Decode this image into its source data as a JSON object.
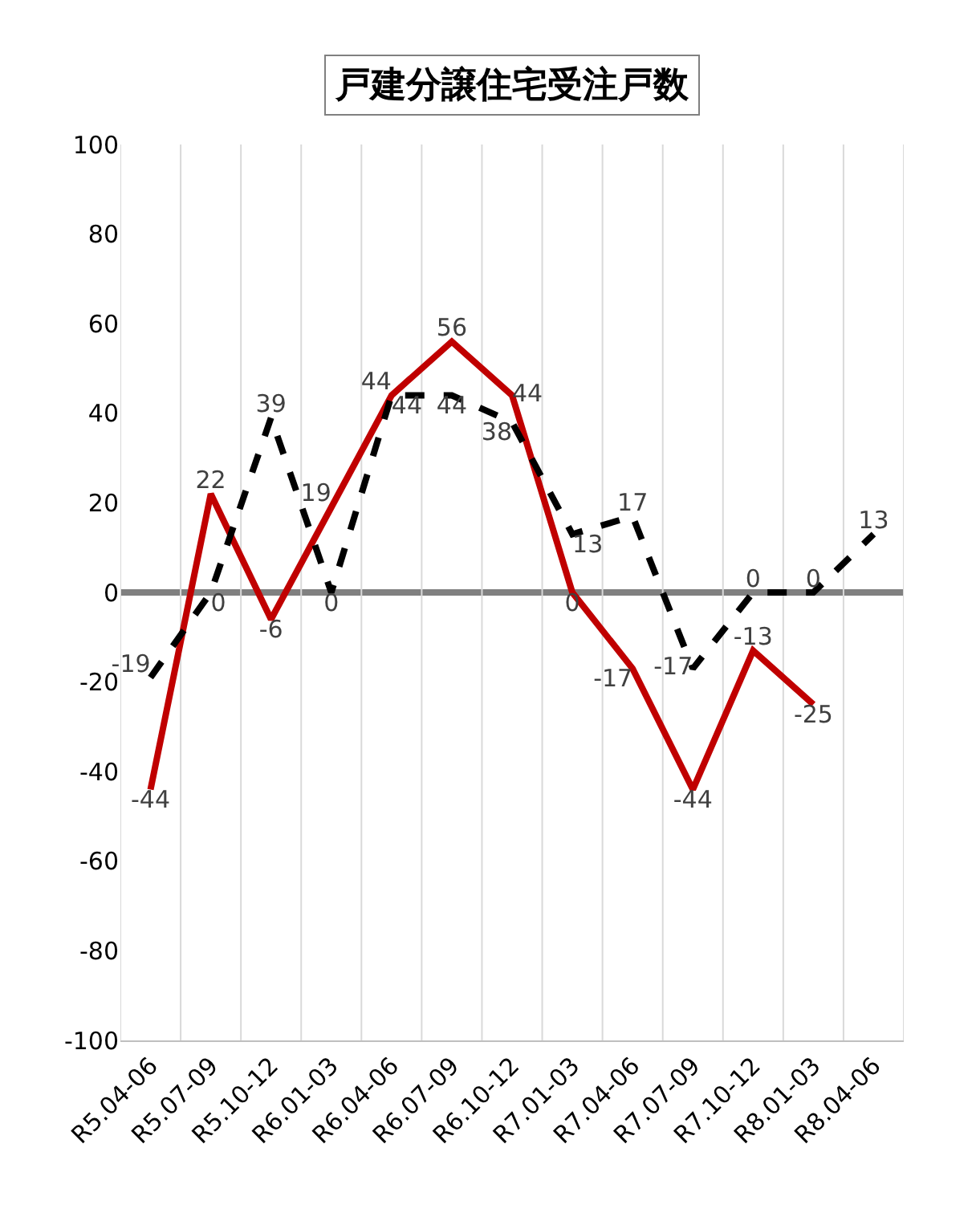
{
  "chart_data": {
    "type": "line",
    "title": "戸建分譲住宅受注戸数",
    "categories": [
      "R5.04-06",
      "R5.07-09",
      "R5.10-12",
      "R6.01-03",
      "R6.04-06",
      "R6.07-09",
      "R6.10-12",
      "R7.01-03",
      "R7.04-06",
      "R7.07-09",
      "R7.10-12",
      "R8.01-03",
      "R8.04-06"
    ],
    "series": [
      {
        "color": "#c00000",
        "line_style": "solid",
        "values": [
          -44,
          22,
          -6,
          19,
          44,
          56,
          44,
          0,
          -17,
          -44,
          -13,
          -25,
          null
        ]
      },
      {
        "color": "#000000",
        "line_style": "dashed",
        "values": [
          -19,
          0,
          39,
          0,
          44,
          44,
          38,
          13,
          17,
          -17,
          0,
          0,
          13
        ]
      }
    ],
    "ylim": [
      -100,
      100
    ],
    "yticks": [
      -100,
      -80,
      -60,
      -40,
      -20,
      0,
      20,
      40,
      60,
      80,
      100
    ],
    "ref_lines": [
      {
        "axis": "y",
        "value": 0,
        "color": "#808080"
      }
    ],
    "grid": "x",
    "marker": "none",
    "data_labels": true
  }
}
